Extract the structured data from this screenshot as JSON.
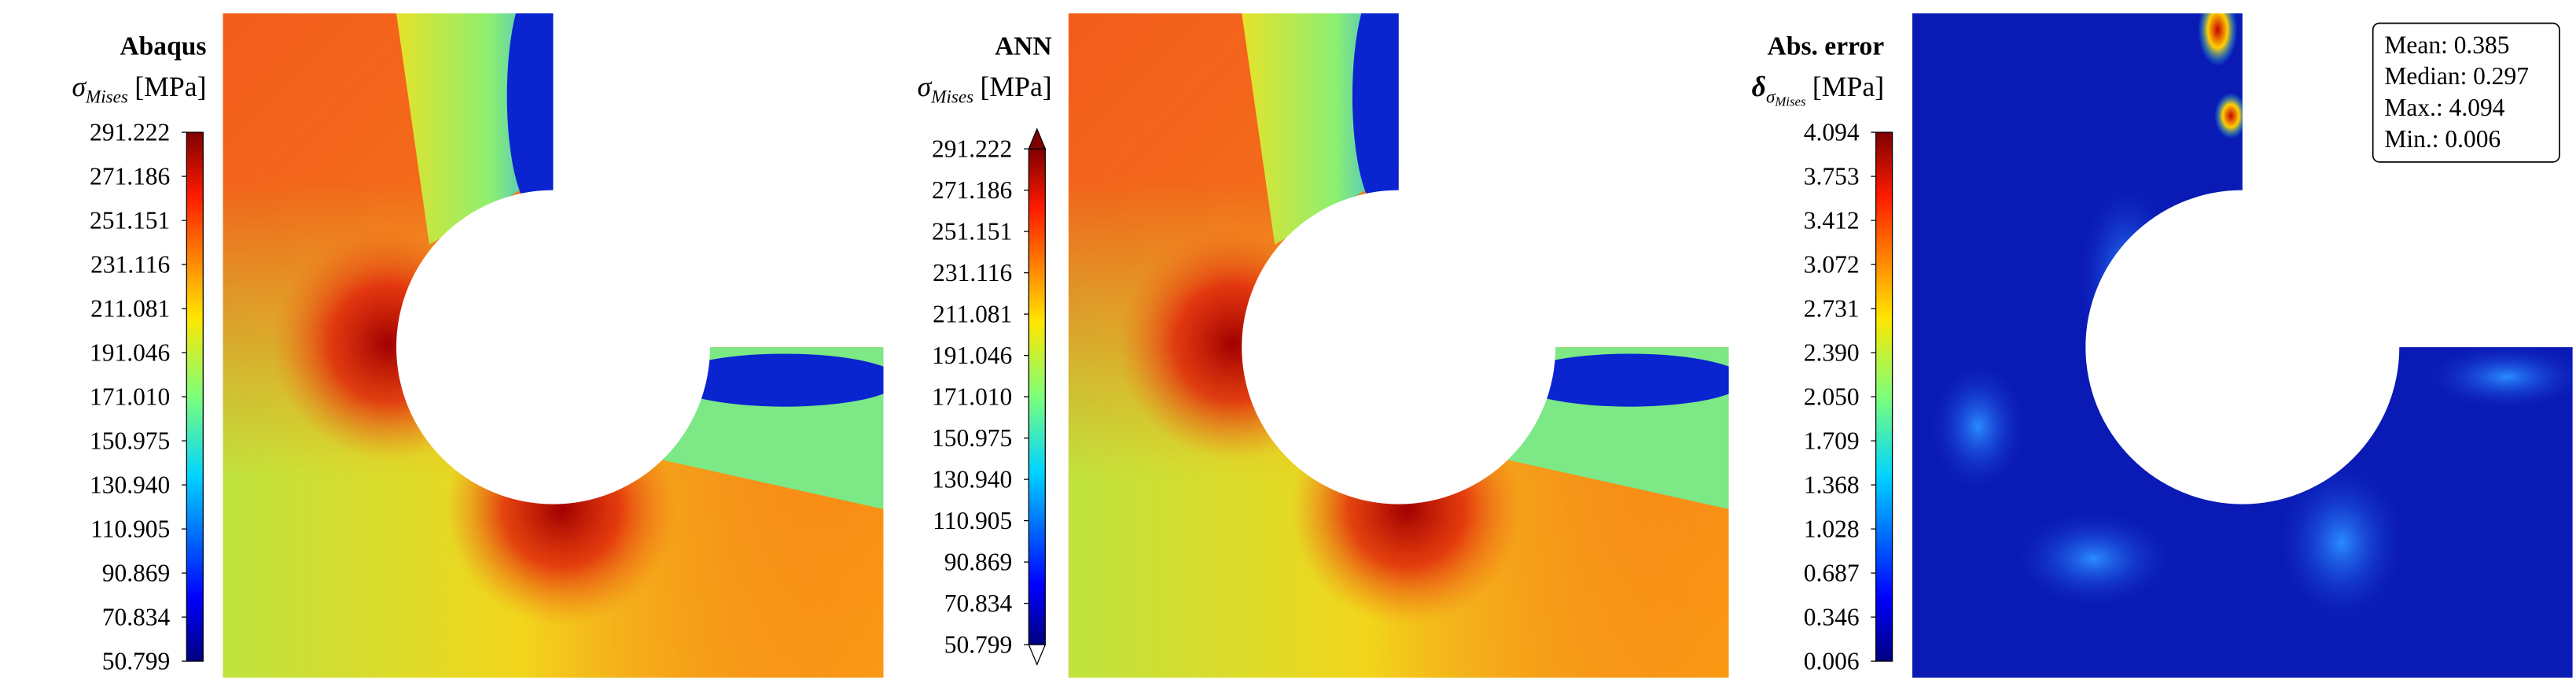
{
  "panels": [
    {
      "title": "Abaqus",
      "symbol": "σ",
      "subscript": "Mises",
      "unit": "[MPa]",
      "colorbar_ticks": [
        "291.222",
        "271.186",
        "251.151",
        "231.116",
        "211.081",
        "191.046",
        "171.010",
        "150.975",
        "130.940",
        "110.905",
        "90.869",
        "70.834",
        "50.799"
      ]
    },
    {
      "title": "ANN",
      "symbol": "σ",
      "subscript": "Mises",
      "unit": "[MPa]",
      "colorbar_ticks": [
        "291.222",
        "271.186",
        "251.151",
        "231.116",
        "211.081",
        "191.046",
        "171.010",
        "150.975",
        "130.940",
        "110.905",
        "90.869",
        "70.834",
        "50.799"
      ]
    },
    {
      "title": "Abs. error",
      "symbol": "δ",
      "subscript": "σ",
      "subsubscript": "Mises",
      "unit": "[MPa]",
      "colorbar_ticks": [
        "4.094",
        "3.753",
        "3.412",
        "3.072",
        "2.731",
        "2.390",
        "2.050",
        "1.709",
        "1.368",
        "1.028",
        "0.687",
        "0.346",
        "0.006"
      ]
    }
  ],
  "stats": [
    "Mean: 0.385",
    "Median: 0.297",
    "Max.: 4.094",
    "Min.: 0.006"
  ]
}
